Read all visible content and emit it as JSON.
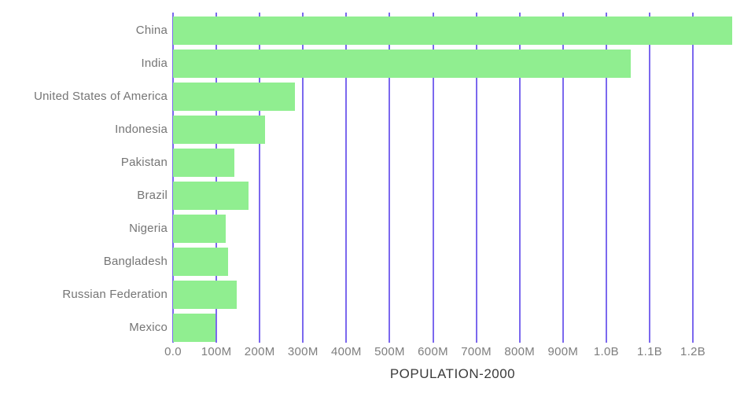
{
  "title": "POPULATION-2000",
  "colors": {
    "bar": "#90EE90",
    "gridline": "#7B68EE",
    "category_label": "#757575",
    "tick_label": "#7e7e7e",
    "title": "#3b3b3b",
    "background": "#ffffff"
  },
  "chart_data": {
    "type": "bar",
    "orientation": "horizontal",
    "title": "POPULATION-2000",
    "xlabel": "POPULATION-2000",
    "ylabel": "",
    "categories": [
      "China",
      "India",
      "United States of America",
      "Indonesia",
      "Pakistan",
      "Brazil",
      "Nigeria",
      "Bangladesh",
      "Russian Federation",
      "Mexico"
    ],
    "values_millions": [
      1290.6,
      1056.6,
      281.7,
      211.5,
      142.3,
      174.8,
      122.3,
      127.7,
      146.4,
      98.9
    ],
    "xlim_millions": [
      0,
      1290.6
    ],
    "x_ticks": [
      {
        "value_millions": 0,
        "label": "0.0"
      },
      {
        "value_millions": 100,
        "label": "100M"
      },
      {
        "value_millions": 200,
        "label": "200M"
      },
      {
        "value_millions": 300,
        "label": "300M"
      },
      {
        "value_millions": 400,
        "label": "400M"
      },
      {
        "value_millions": 500,
        "label": "500M"
      },
      {
        "value_millions": 600,
        "label": "600M"
      },
      {
        "value_millions": 700,
        "label": "700M"
      },
      {
        "value_millions": 800,
        "label": "800M"
      },
      {
        "value_millions": 900,
        "label": "900M"
      },
      {
        "value_millions": 1000,
        "label": "1.0B"
      },
      {
        "value_millions": 1100,
        "label": "1.1B"
      },
      {
        "value_millions": 1200,
        "label": "1.2B"
      }
    ],
    "grid": true,
    "legend": false
  }
}
